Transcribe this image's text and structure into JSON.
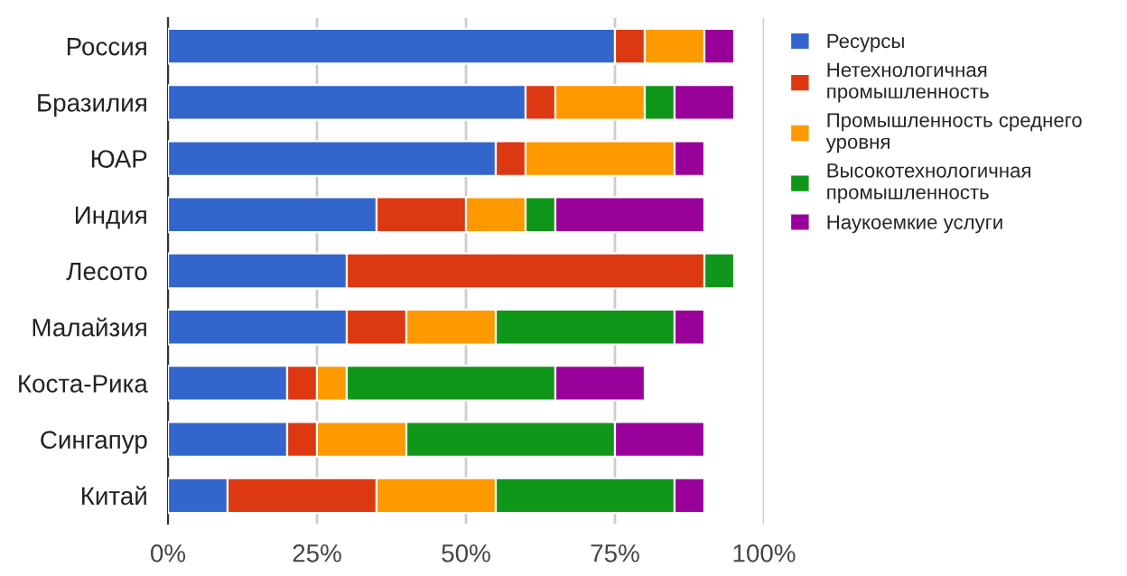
{
  "chart_data": {
    "type": "bar",
    "orientation": "horizontal",
    "stacked": true,
    "categories": [
      "Россия",
      "Бразилия",
      "ЮАР",
      "Индия",
      "Лесото",
      "Малайзия",
      "Коста-Рика",
      "Сингапур",
      "Китай"
    ],
    "series": [
      {
        "name": "Ресурсы",
        "color": "#3366cc",
        "values": [
          75,
          60,
          55,
          35,
          30,
          30,
          20,
          20,
          10
        ]
      },
      {
        "name": "Нетехнологичная промышленность",
        "color": "#dc3912",
        "values": [
          5,
          5,
          5,
          15,
          60,
          10,
          5,
          5,
          25
        ]
      },
      {
        "name": "Промышленность среднего уровня",
        "color": "#ff9900",
        "values": [
          10,
          15,
          25,
          10,
          0,
          15,
          5,
          15,
          20
        ]
      },
      {
        "name": "Высокотехнологичная промышленность",
        "color": "#109618",
        "values": [
          0,
          5,
          0,
          5,
          5,
          30,
          35,
          35,
          30
        ]
      },
      {
        "name": "Наукоемкие услуги",
        "color": "#990099",
        "values": [
          5,
          10,
          5,
          25,
          0,
          5,
          15,
          15,
          5
        ]
      }
    ],
    "xlim": [
      0,
      100
    ],
    "xticks": [
      {
        "value": 0,
        "label": "0%"
      },
      {
        "value": 25,
        "label": "25%"
      },
      {
        "value": 50,
        "label": "50%"
      },
      {
        "value": 75,
        "label": "75%"
      },
      {
        "value": 100,
        "label": "100%"
      }
    ],
    "grid": "x",
    "legend": "right"
  }
}
